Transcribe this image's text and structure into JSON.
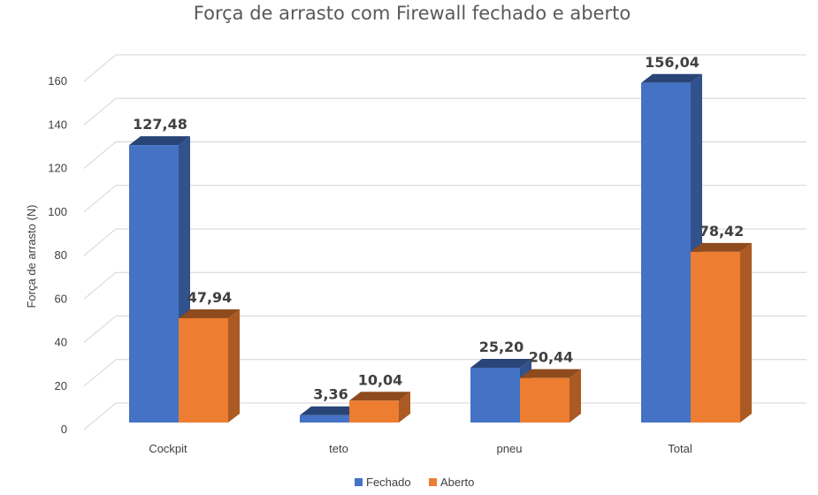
{
  "chart_data": {
    "type": "bar",
    "title": "Força de arrasto com Firewall fechado e aberto",
    "ylabel": "Força de arrasto (N)",
    "xlabel": "",
    "categories": [
      "Cockpit",
      "teto",
      "pneu",
      "Total"
    ],
    "series": [
      {
        "name": "Fechado",
        "color": "#4472C4",
        "values": [
          127.48,
          3.36,
          25.2,
          156.04
        ],
        "labels": [
          "127,48",
          "3,36",
          "25,20",
          "156,04"
        ]
      },
      {
        "name": "Aberto",
        "color": "#ED7D31",
        "values": [
          47.94,
          10.04,
          20.44,
          78.42
        ],
        "labels": [
          "47,94",
          "10,04",
          "20,44",
          "78,42"
        ]
      }
    ],
    "ylim": [
      0,
      160
    ],
    "yticks": [
      0,
      20,
      40,
      60,
      80,
      100,
      120,
      140,
      160
    ],
    "grid": true,
    "style": "3d-clustered-column",
    "legend": "bottom"
  }
}
